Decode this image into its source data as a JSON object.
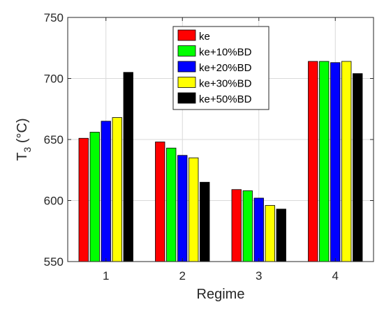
{
  "chart_data": {
    "type": "bar",
    "categories": [
      "1",
      "2",
      "3",
      "4"
    ],
    "xlabel": "Regime",
    "ylabel_main": "T",
    "ylabel_sub": "3",
    "ylabel_unit": " (°C)",
    "ylim": [
      550,
      750
    ],
    "yticks": [
      "550",
      "600",
      "650",
      "700",
      "750"
    ],
    "grid": true,
    "legend_position": "top-center",
    "series": [
      {
        "name": "ke",
        "color": "#ff0000",
        "values": [
          651,
          648,
          609,
          714
        ]
      },
      {
        "name": "ke+10%BD",
        "color": "#00ff00",
        "values": [
          656,
          643,
          608,
          714
        ]
      },
      {
        "name": "ke+20%BD",
        "color": "#0000ff",
        "values": [
          665,
          637,
          602,
          713
        ]
      },
      {
        "name": "ke+30%BD",
        "color": "#ffff00",
        "values": [
          668,
          635,
          596,
          714
        ]
      },
      {
        "name": "ke+50%BD",
        "color": "#000000",
        "values": [
          705,
          615,
          593,
          704
        ]
      }
    ]
  }
}
